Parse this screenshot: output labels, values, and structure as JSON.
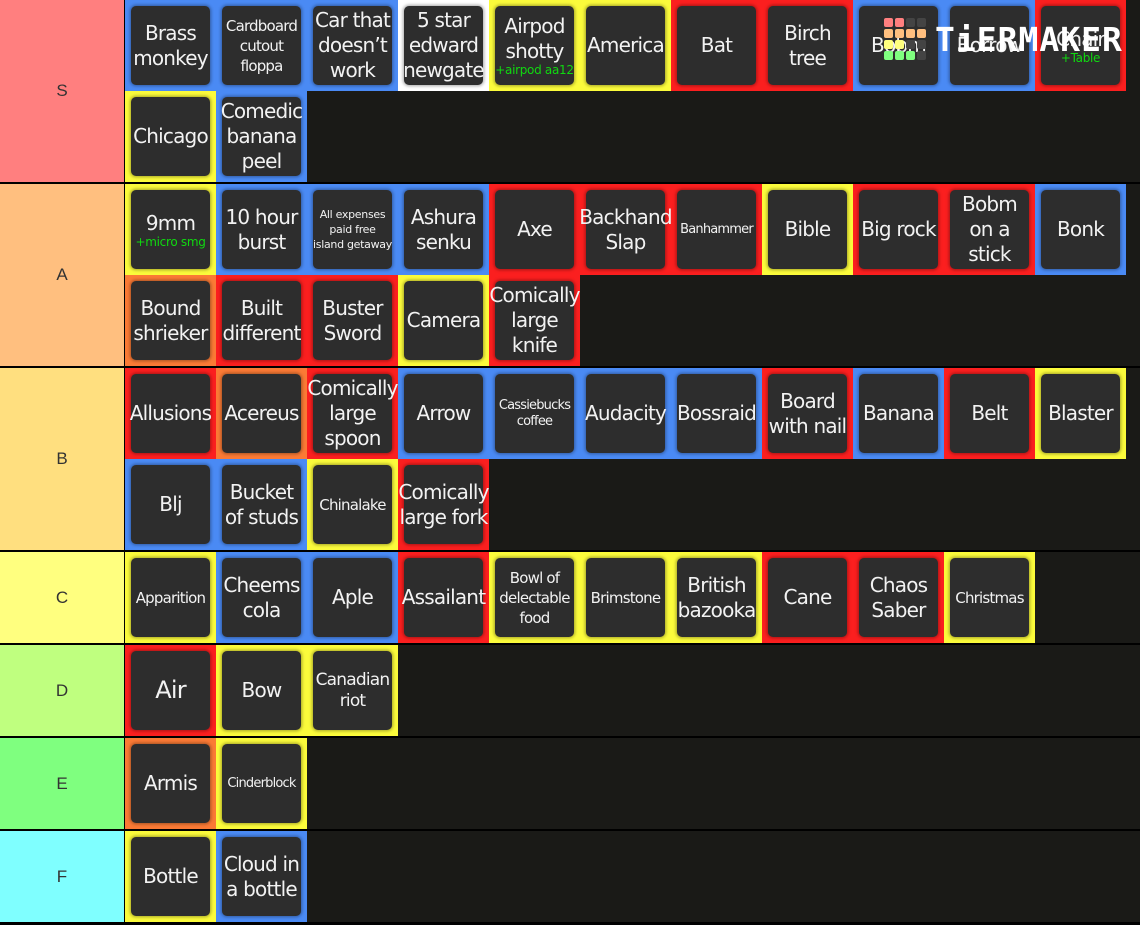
{
  "logo": {
    "text": "TiERMAKER",
    "grid_colors": [
      "#ff7f7f",
      "#ff7f7f",
      "#444444",
      "#444444",
      "#ffbf7f",
      "#ffbf7f",
      "#ffbf7f",
      "#ffbf7f",
      "#ffff7f",
      "#ffff7f",
      "#444444",
      "#444444",
      "#7fff7f",
      "#7fff7f",
      "#7fff7f",
      "#444444"
    ]
  },
  "border_colors": {
    "blue": "#4a8af4",
    "red": "#fb1f1f",
    "yellow": "#fbfb3b",
    "orange": "#fb7a35",
    "white": "#ffffff"
  },
  "tiers": [
    {
      "label": "S",
      "color": "#ff7f7f",
      "height": 184,
      "items": [
        {
          "name": "Brass monkey",
          "border": "blue"
        },
        {
          "name": "Cardboard cutout floppa",
          "border": "blue",
          "size": "s15"
        },
        {
          "name": "Car that doesn’t work",
          "border": "blue"
        },
        {
          "name": "5 star edward newgate",
          "border": "white"
        },
        {
          "name": "Airpod shotty",
          "sub": "+airpod aa12",
          "border": "yellow"
        },
        {
          "name": "America",
          "border": "yellow"
        },
        {
          "name": "Bat",
          "border": "red"
        },
        {
          "name": "Birch tree",
          "border": "red"
        },
        {
          "name": "Bobm",
          "border": "blue"
        },
        {
          "name": "Borrow",
          "border": "blue"
        },
        {
          "name": "Chair",
          "sub": "+Table",
          "border": "red"
        },
        {
          "name": "Chicago",
          "border": "yellow"
        },
        {
          "name": "Comedic banana peel",
          "border": "blue"
        }
      ]
    },
    {
      "label": "A",
      "color": "#ffbf7f",
      "height": 184,
      "items": [
        {
          "name": "9mm",
          "sub": "+micro smg",
          "border": "yellow"
        },
        {
          "name": "10 hour burst",
          "border": "blue"
        },
        {
          "name": "All expenses paid free island getaway",
          "border": "blue",
          "size": "s11"
        },
        {
          "name": "Ashura senku",
          "border": "blue"
        },
        {
          "name": "Axe",
          "border": "red"
        },
        {
          "name": "Backhand Slap",
          "border": "red"
        },
        {
          "name": "Banhammer",
          "border": "red",
          "size": "s13"
        },
        {
          "name": "Bible",
          "border": "yellow"
        },
        {
          "name": "Big rock",
          "border": "red"
        },
        {
          "name": "Bobm on a stick",
          "border": "red"
        },
        {
          "name": "Bonk",
          "border": "blue"
        },
        {
          "name": "Bound shrieker",
          "border": "orange"
        },
        {
          "name": "Built different",
          "border": "red"
        },
        {
          "name": "Buster Sword",
          "border": "red"
        },
        {
          "name": "Camera",
          "border": "yellow"
        },
        {
          "name": "Comically large knife",
          "border": "red"
        }
      ]
    },
    {
      "label": "B",
      "color": "#ffdf7f",
      "height": 184,
      "items": [
        {
          "name": "Allusions",
          "border": "red"
        },
        {
          "name": "Acereus",
          "border": "orange"
        },
        {
          "name": "Comically large spoon",
          "border": "red"
        },
        {
          "name": "Arrow",
          "border": "blue"
        },
        {
          "name": "Cassiebucks coffee",
          "border": "blue",
          "size": "s13"
        },
        {
          "name": "Audacity",
          "border": "blue"
        },
        {
          "name": "Bossraid",
          "border": "blue"
        },
        {
          "name": "Board with nail",
          "border": "red"
        },
        {
          "name": "Banana",
          "border": "blue"
        },
        {
          "name": "Belt",
          "border": "red"
        },
        {
          "name": "Blaster",
          "border": "yellow"
        },
        {
          "name": "Blj",
          "border": "blue"
        },
        {
          "name": "Bucket of studs",
          "border": "blue"
        },
        {
          "name": "Chinalake",
          "border": "yellow",
          "size": "s15"
        },
        {
          "name": "Comically large fork",
          "border": "red"
        }
      ]
    },
    {
      "label": "C",
      "color": "#ffff7f",
      "height": 92,
      "items": [
        {
          "name": "Apparition",
          "border": "yellow",
          "size": "s15"
        },
        {
          "name": "Cheems cola",
          "border": "blue"
        },
        {
          "name": "Aple",
          "border": "blue"
        },
        {
          "name": "Assailant",
          "border": "red"
        },
        {
          "name": "Bowl of delectable food",
          "border": "yellow",
          "size": "s15"
        },
        {
          "name": "Brimstone",
          "border": "yellow",
          "size": "s15"
        },
        {
          "name": "British bazooka",
          "border": "yellow"
        },
        {
          "name": "Cane",
          "border": "red"
        },
        {
          "name": "Chaos Saber",
          "border": "red"
        },
        {
          "name": "Christmas",
          "border": "yellow",
          "size": "s15"
        }
      ]
    },
    {
      "label": "D",
      "color": "#bfff7f",
      "height": 92,
      "items": [
        {
          "name": "Air",
          "border": "red",
          "size": "big"
        },
        {
          "name": "Bow",
          "border": "yellow"
        },
        {
          "name": "Canadian riot",
          "border": "yellow",
          "size": "s17"
        }
      ]
    },
    {
      "label": "E",
      "color": "#7fff7f",
      "height": 92,
      "items": [
        {
          "name": "Armis",
          "border": "orange"
        },
        {
          "name": "Cinderblock",
          "border": "yellow",
          "size": "s13"
        }
      ]
    },
    {
      "label": "F",
      "color": "#7fffff",
      "height": 92,
      "items": [
        {
          "name": "Bottle",
          "border": "yellow"
        },
        {
          "name": "Cloud in a bottle",
          "border": "blue"
        }
      ]
    }
  ]
}
